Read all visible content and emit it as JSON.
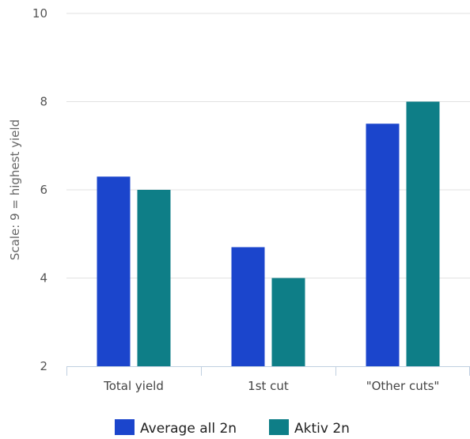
{
  "chart_data": {
    "type": "bar",
    "title": "",
    "xlabel": "",
    "ylabel": "Scale: 9 = highest yield",
    "categories": [
      "Total yield",
      "1st cut",
      "\"Other cuts\""
    ],
    "series": [
      {
        "name": "Average all 2n",
        "color": "#1b45cc",
        "values": [
          6.3,
          4.7,
          7.5
        ]
      },
      {
        "name": "Aktiv 2n",
        "color": "#0e7e87",
        "values": [
          6.0,
          4.0,
          8.0
        ]
      }
    ],
    "ylim": [
      2,
      10
    ],
    "yticks": [
      2,
      4,
      6,
      8,
      10
    ],
    "grid": true,
    "legend": "bottom-center"
  }
}
